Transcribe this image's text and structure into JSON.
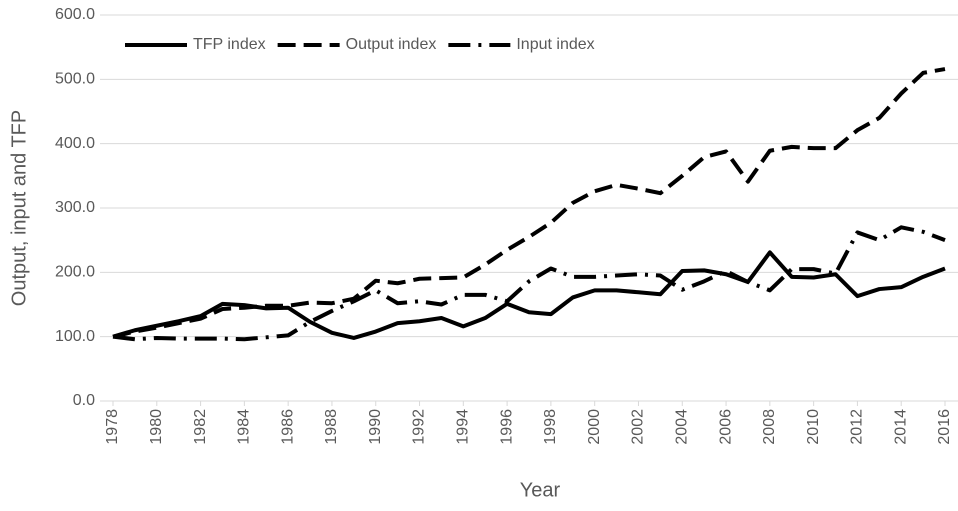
{
  "chart_data": {
    "type": "line",
    "x_label": "Year",
    "y_label": "Output, input and TFP",
    "x": [
      1978,
      1979,
      1980,
      1981,
      1982,
      1983,
      1984,
      1985,
      1986,
      1987,
      1988,
      1989,
      1990,
      1991,
      1992,
      1993,
      1994,
      1995,
      1996,
      1997,
      1998,
      1999,
      2000,
      2001,
      2002,
      2003,
      2004,
      2005,
      2006,
      2007,
      2008,
      2009,
      2010,
      2011,
      2012,
      2013,
      2014,
      2015,
      2016
    ],
    "series": [
      {
        "name": "TFP index",
        "color": "#000000",
        "dash": "solid",
        "values": [
          100,
          110,
          117,
          124,
          132,
          151,
          149,
          144,
          145,
          123,
          106,
          98,
          108,
          121,
          124,
          129,
          116,
          129,
          151,
          138,
          135,
          161,
          172,
          172,
          169,
          166,
          202,
          203,
          197,
          185,
          231,
          193,
          192,
          197,
          163,
          174,
          177,
          193,
          206
        ]
      },
      {
        "name": "Output index",
        "color": "#000000",
        "dash": "dashed",
        "values": [
          100,
          108,
          114,
          121,
          128,
          143,
          145,
          148,
          148,
          153,
          152,
          159,
          187,
          183,
          190,
          191,
          192,
          212,
          235,
          255,
          277,
          308,
          326,
          336,
          330,
          323,
          350,
          379,
          388,
          341,
          389,
          395,
          393,
          393,
          421,
          440,
          478,
          510,
          516
        ]
      },
      {
        "name": "Input index",
        "color": "#000000",
        "dash": "dashdot",
        "values": [
          100,
          96,
          98,
          97,
          97,
          97,
          96,
          99,
          102,
          123,
          140,
          155,
          172,
          152,
          155,
          150,
          165,
          165,
          155,
          186,
          206,
          193,
          193,
          195,
          197,
          195,
          173,
          186,
          202,
          185,
          172,
          205,
          205,
          198,
          262,
          250,
          270,
          263,
          250
        ]
      }
    ],
    "xlim": [
      1978,
      2016
    ],
    "xticks": [
      1978,
      1980,
      1982,
      1984,
      1986,
      1988,
      1990,
      1992,
      1994,
      1996,
      1998,
      2000,
      2002,
      2004,
      2006,
      2008,
      2010,
      2012,
      2014,
      2016
    ],
    "ylim": [
      0,
      600
    ],
    "yticks": [
      {
        "value": 0,
        "label": "0.0"
      },
      {
        "value": 100,
        "label": "100.0"
      },
      {
        "value": 200,
        "label": "200.0"
      },
      {
        "value": 300,
        "label": "300.0"
      },
      {
        "value": 400,
        "label": "400.0"
      },
      {
        "value": 500,
        "label": "500.0"
      },
      {
        "value": 600,
        "label": "600.0"
      }
    ],
    "grid": true,
    "legend": "top"
  }
}
